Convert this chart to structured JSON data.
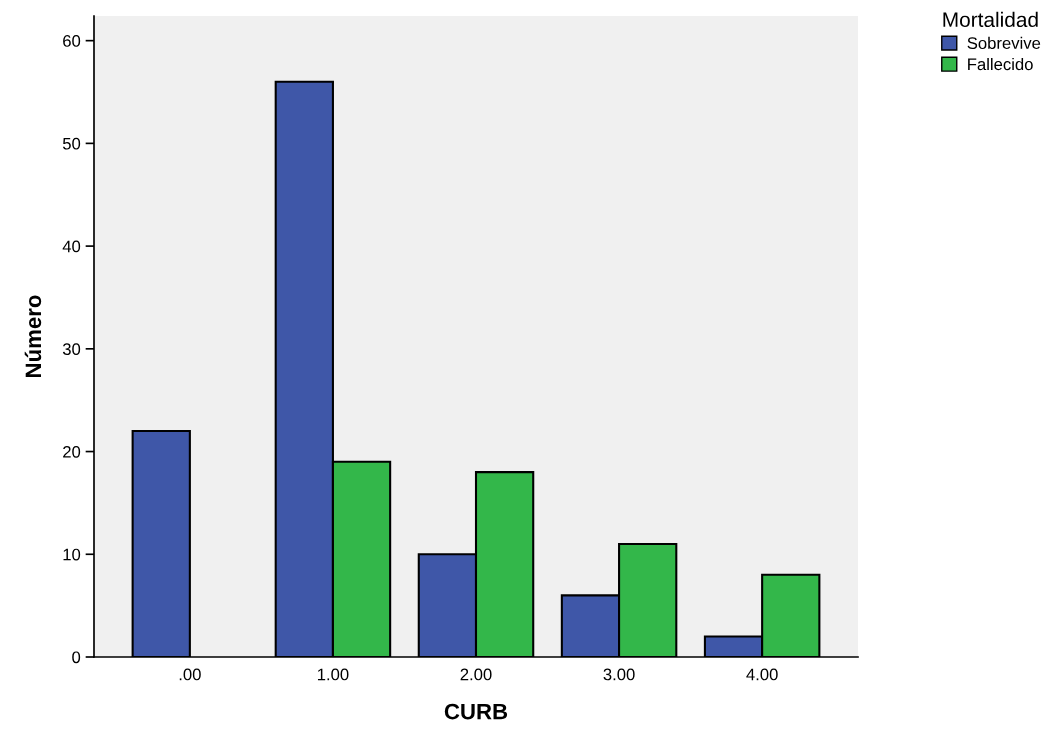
{
  "chart_data": {
    "type": "bar",
    "xlabel": "CURB",
    "ylabel": "Número",
    "legend_title": "Mortalidad",
    "categories": [
      ".00",
      "1.00",
      "2.00",
      "3.00",
      "4.00"
    ],
    "series": [
      {
        "name": "Sobrevive",
        "color": "#3f57a8",
        "values": [
          22,
          56,
          10,
          6,
          2
        ]
      },
      {
        "name": "Fallecido",
        "color": "#33b74a",
        "values": [
          null,
          19,
          18,
          11,
          8
        ]
      }
    ],
    "ylim": [
      0,
      62.4
    ],
    "yticks": [
      0,
      10,
      20,
      30,
      40,
      50,
      60
    ],
    "grid": false,
    "legend": "top right"
  }
}
